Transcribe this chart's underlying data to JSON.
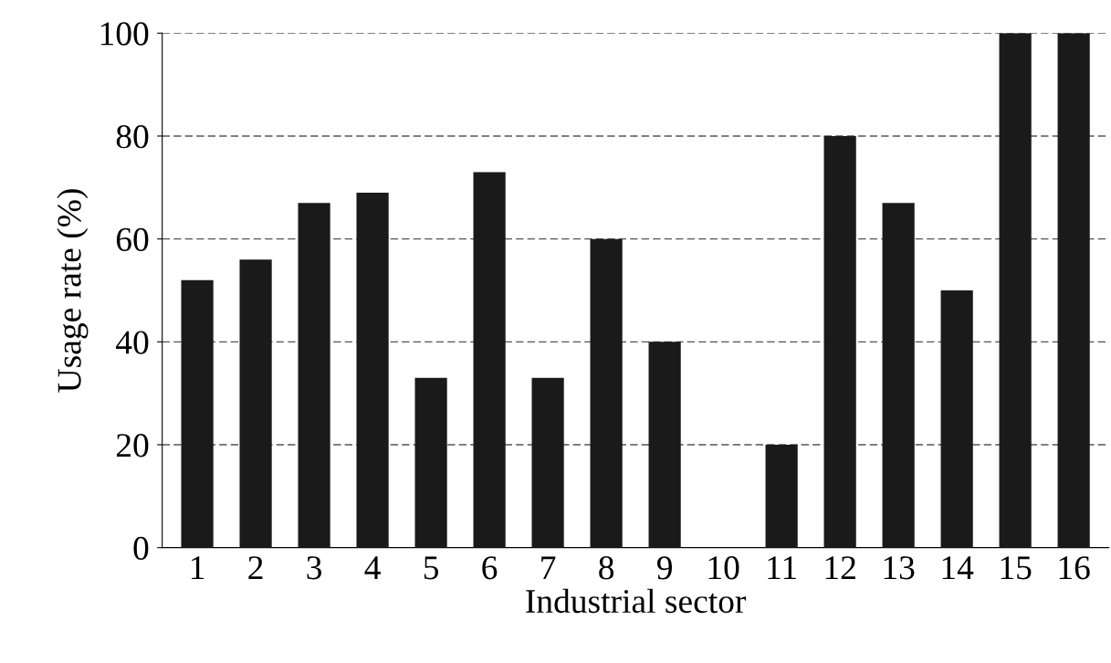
{
  "chart_data": {
    "type": "bar",
    "xlabel": "Industrial sector",
    "ylabel": "Usage rate (%)",
    "categories": [
      "1",
      "2",
      "3",
      "4",
      "5",
      "6",
      "7",
      "8",
      "9",
      "10",
      "11",
      "12",
      "13",
      "14",
      "15",
      "16"
    ],
    "values": [
      52,
      56,
      67,
      69,
      33,
      73,
      33,
      60,
      40,
      0,
      20,
      80,
      67,
      50,
      100,
      100
    ],
    "color": "#1a1a1a",
    "ylim": [
      0,
      100
    ],
    "yticks": [
      0,
      20,
      40,
      60,
      80,
      100
    ],
    "grid": "y"
  }
}
